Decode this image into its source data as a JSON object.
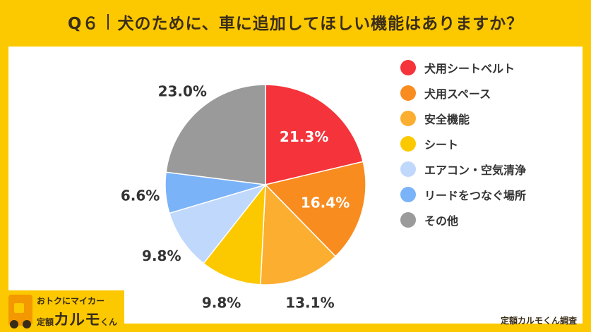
{
  "header": {
    "q_label": "Q６",
    "question": "犬のために、車に追加してほしい機能はありますか？"
  },
  "chart_data": {
    "type": "pie",
    "title": "Q６ 犬のために、車に追加してほしい機能はありますか？",
    "slices": [
      {
        "label": "犬用シートベルト",
        "value": 21.3,
        "display": "21.3%",
        "color": "#f5333a"
      },
      {
        "label": "犬用スペース",
        "value": 16.4,
        "display": "16.4%",
        "color": "#f88c1f"
      },
      {
        "label": "安全機能",
        "value": 13.1,
        "display": "13.1%",
        "color": "#fbae2f"
      },
      {
        "label": "シート",
        "value": 9.8,
        "display": "9.8%",
        "color": "#fcc800"
      },
      {
        "label": "エアコン・空気清浄",
        "value": 9.8,
        "display": "9.8%",
        "color": "#bfd8fb"
      },
      {
        "label": "リードをつなぐ場所",
        "value": 6.6,
        "display": "6.6%",
        "color": "#7ab3f8"
      },
      {
        "label": "その他",
        "value": 23.0,
        "display": "23.0%",
        "color": "#9a9a9a"
      }
    ],
    "legend_position": "right"
  },
  "brand": {
    "tagline": "おトクにマイカー",
    "prefix": "定額",
    "name": "カルモ",
    "suffix": "くん"
  },
  "credit": "定額カルモくん調査"
}
